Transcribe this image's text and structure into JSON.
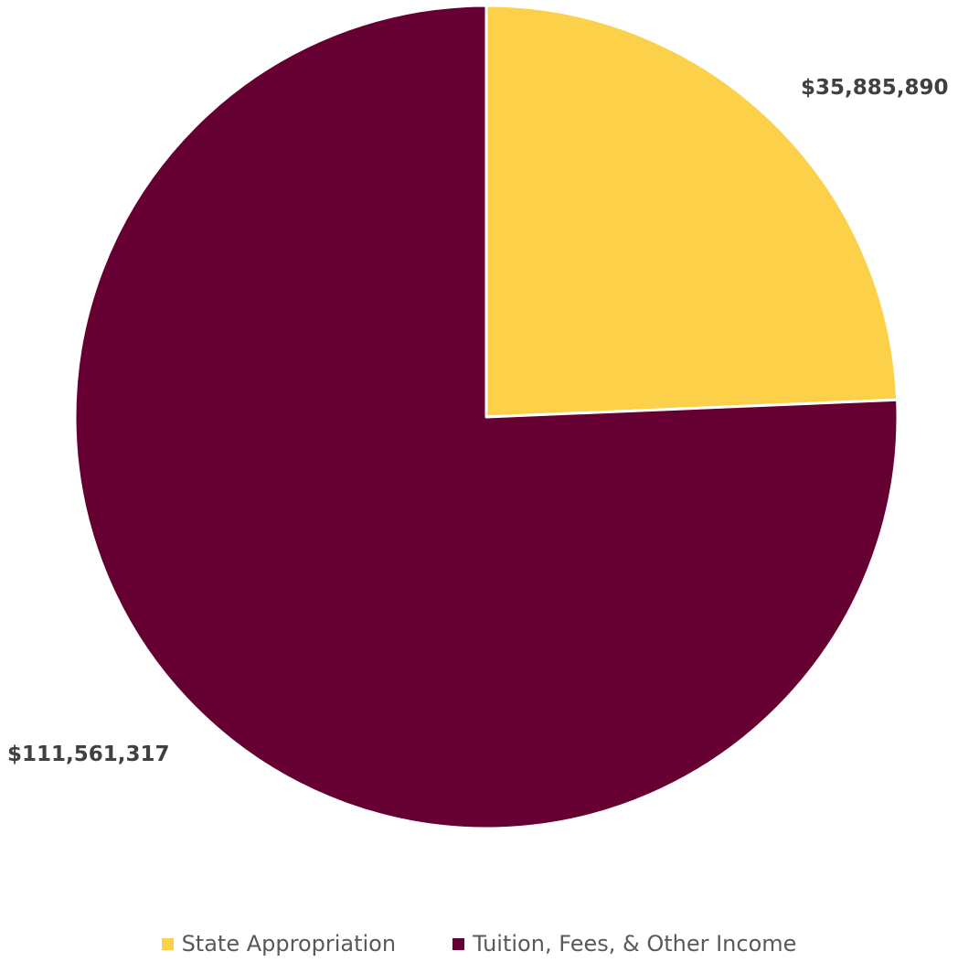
{
  "chart_data": {
    "type": "pie",
    "title": "",
    "categories": [
      "State Appropriation",
      "Tuition, Fees, & Other Income"
    ],
    "values": [
      35885890,
      111561317
    ],
    "data_labels": [
      "$35,885,890",
      "$111,561,317"
    ],
    "colors": [
      "#FDD04A",
      "#660033"
    ],
    "legend": {
      "placement": "bottom",
      "entries": [
        "State Appropriation",
        "Tuition, Fees, & Other Income"
      ]
    }
  }
}
